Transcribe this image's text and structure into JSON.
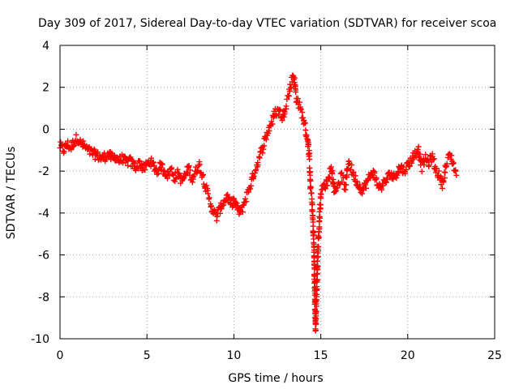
{
  "chart_data": {
    "type": "scatter",
    "title": "Day 309 of 2017, Sidereal Day-to-day VTEC variation (SDTVAR) for receiver scoa",
    "xlabel": "GPS time / hours",
    "ylabel": "SDTVAR / TECUs",
    "xlim": [
      0,
      25
    ],
    "ylim": [
      -10,
      4
    ],
    "xticks": [
      0,
      5,
      10,
      15,
      20,
      25
    ],
    "yticks": [
      -10,
      -8,
      -6,
      -4,
      -2,
      0,
      2,
      4
    ],
    "xtick_labels": [
      "0",
      "5",
      "10",
      "15",
      "20",
      "25"
    ],
    "ytick_labels": [
      "-10",
      "-8",
      "-6",
      "-4",
      "-2",
      "0",
      "2",
      "4"
    ],
    "grid": true,
    "marker": "+",
    "color": "#ff0000",
    "series": [
      {
        "name": "SDTVAR",
        "x": [
          0.0,
          0.2,
          0.4,
          0.6,
          0.8,
          1.0,
          1.2,
          1.4,
          1.6,
          1.8,
          2.0,
          2.2,
          2.4,
          2.6,
          2.8,
          3.0,
          3.2,
          3.4,
          3.6,
          3.8,
          4.0,
          4.2,
          4.4,
          4.6,
          4.8,
          5.0,
          5.2,
          5.4,
          5.6,
          5.8,
          6.0,
          6.2,
          6.4,
          6.6,
          6.8,
          7.0,
          7.2,
          7.4,
          7.6,
          7.8,
          8.0,
          8.2,
          8.4,
          8.6,
          8.8,
          9.0,
          9.2,
          9.4,
          9.6,
          9.8,
          10.0,
          10.2,
          10.4,
          10.6,
          10.8,
          11.0,
          11.2,
          11.4,
          11.6,
          11.8,
          12.0,
          12.2,
          12.4,
          12.6,
          12.8,
          13.0,
          13.2,
          13.4,
          13.5,
          13.6,
          13.8,
          14.0,
          14.2,
          14.3,
          14.4,
          14.5,
          14.55,
          14.6,
          14.65,
          14.7,
          14.8,
          15.0,
          15.2,
          15.4,
          15.6,
          15.8,
          16.0,
          16.2,
          16.4,
          16.6,
          16.8,
          17.0,
          17.2,
          17.4,
          17.6,
          17.8,
          18.0,
          18.2,
          18.4,
          18.6,
          18.8,
          19.0,
          19.2,
          19.4,
          19.6,
          19.8,
          20.0,
          20.2,
          20.4,
          20.6,
          20.8,
          21.0,
          21.2,
          21.4,
          21.6,
          21.8,
          22.0,
          22.2,
          22.4,
          22.6,
          22.8
        ],
        "y": [
          -0.8,
          -1.0,
          -0.7,
          -0.9,
          -0.6,
          -0.4,
          -0.7,
          -0.8,
          -1.0,
          -1.1,
          -1.2,
          -1.3,
          -1.4,
          -1.3,
          -1.2,
          -1.4,
          -1.3,
          -1.5,
          -1.4,
          -1.6,
          -1.5,
          -1.7,
          -1.8,
          -1.6,
          -1.9,
          -1.7,
          -1.5,
          -1.8,
          -2.0,
          -1.7,
          -2.0,
          -2.2,
          -1.9,
          -2.3,
          -2.1,
          -2.5,
          -2.2,
          -1.8,
          -2.4,
          -2.0,
          -1.7,
          -2.2,
          -2.8,
          -3.4,
          -3.9,
          -4.2,
          -3.8,
          -3.5,
          -3.2,
          -3.6,
          -3.4,
          -3.8,
          -4.0,
          -3.5,
          -3.0,
          -2.5,
          -2.0,
          -1.5,
          -1.0,
          -0.5,
          0.0,
          0.4,
          0.8,
          0.9,
          0.5,
          1.2,
          1.8,
          2.6,
          2.2,
          1.5,
          1.0,
          0.5,
          -0.3,
          -0.8,
          -2.7,
          -3.5,
          -4.5,
          -5.5,
          -7.5,
          -9.5,
          -6.5,
          -3.0,
          -2.7,
          -2.5,
          -1.8,
          -3.0,
          -2.6,
          -2.2,
          -2.8,
          -1.5,
          -2.0,
          -2.4,
          -2.7,
          -2.9,
          -2.6,
          -2.3,
          -2.0,
          -2.5,
          -2.8,
          -2.6,
          -2.4,
          -2.1,
          -2.3,
          -2.0,
          -1.8,
          -2.0,
          -1.7,
          -1.5,
          -1.2,
          -0.9,
          -1.8,
          -1.4,
          -1.6,
          -1.3,
          -1.9,
          -2.2,
          -2.6,
          -1.8,
          -1.2,
          -1.6,
          -2.2
        ]
      }
    ]
  }
}
